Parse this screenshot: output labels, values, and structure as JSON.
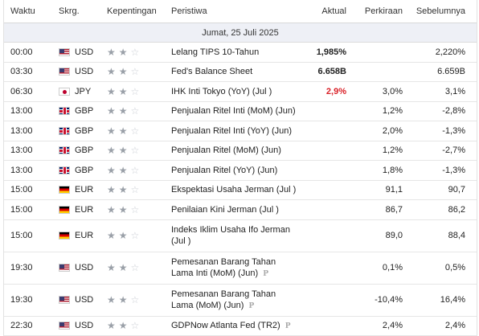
{
  "headers": {
    "time": "Waktu",
    "currency": "Skrg.",
    "importance": "Kepentingan",
    "event": "Peristiwa",
    "actual": "Aktual",
    "forecast": "Perkiraan",
    "previous": "Sebelumnya"
  },
  "day_label": "Jumat, 25 Juli 2025",
  "rows": [
    {
      "time": "00:00",
      "flag": "us",
      "cur": "USD",
      "event": "Lelang TIPS 10-Tahun",
      "event2": "",
      "actual": "1,985%",
      "forecast": "",
      "previous": "2,220%",
      "p": false
    },
    {
      "time": "03:30",
      "flag": "us",
      "cur": "USD",
      "event": "Fed's Balance Sheet",
      "event2": "",
      "actual": "6.658B",
      "forecast": "",
      "previous": "6.659B",
      "p": false
    },
    {
      "time": "06:30",
      "flag": "jp",
      "cur": "JPY",
      "event": "IHK Inti Tokyo (YoY) (Jul )",
      "event2": "",
      "actual": "2,9%",
      "forecast": "3,0%",
      "previous": "3,1%",
      "p": false
    },
    {
      "time": "13:00",
      "flag": "gb",
      "cur": "GBP",
      "event": "Penjualan Ritel Inti (MoM) (Jun)",
      "event2": "",
      "actual": "",
      "forecast": "1,2%",
      "previous": "-2,8%",
      "p": false
    },
    {
      "time": "13:00",
      "flag": "gb",
      "cur": "GBP",
      "event": "Penjualan Ritel Inti (YoY) (Jun)",
      "event2": "",
      "actual": "",
      "forecast": "2,0%",
      "previous": "-1,3%",
      "p": false
    },
    {
      "time": "13:00",
      "flag": "gb",
      "cur": "GBP",
      "event": "Penjualan Ritel (MoM) (Jun)",
      "event2": "",
      "actual": "",
      "forecast": "1,2%",
      "previous": "-2,7%",
      "p": false
    },
    {
      "time": "13:00",
      "flag": "gb",
      "cur": "GBP",
      "event": "Penjualan Ritel (YoY) (Jun)",
      "event2": "",
      "actual": "",
      "forecast": "1,8%",
      "previous": "-1,3%",
      "p": false
    },
    {
      "time": "15:00",
      "flag": "de",
      "cur": "EUR",
      "event": "Ekspektasi Usaha Jerman (Jul )",
      "event2": "",
      "actual": "",
      "forecast": "91,1",
      "previous": "90,7",
      "p": false
    },
    {
      "time": "15:00",
      "flag": "de",
      "cur": "EUR",
      "event": "Penilaian Kini Jerman (Jul )",
      "event2": "",
      "actual": "",
      "forecast": "86,7",
      "previous": "86,2",
      "p": false
    },
    {
      "time": "15:00",
      "flag": "de",
      "cur": "EUR",
      "event": "Indeks Iklim Usaha Ifo Jerman",
      "event2": "(Jul )",
      "actual": "",
      "forecast": "89,0",
      "previous": "88,4",
      "p": false
    },
    {
      "time": "19:30",
      "flag": "us",
      "cur": "USD",
      "event": "Pemesanan Barang Tahan",
      "event2": "Lama Inti (MoM) (Jun)",
      "actual": "",
      "forecast": "0,1%",
      "previous": "0,5%",
      "p": true
    },
    {
      "time": "19:30",
      "flag": "us",
      "cur": "USD",
      "event": "Pemesanan Barang Tahan",
      "event2": "Lama (MoM) (Jun)",
      "actual": "",
      "forecast": "-10,4%",
      "previous": "16,4%",
      "p": true
    },
    {
      "time": "22:30",
      "flag": "us",
      "cur": "USD",
      "event": "GDPNow Atlanta Fed (TR2)",
      "event2": "",
      "actual": "",
      "forecast": "2,4%",
      "previous": "2,4%",
      "p": true
    }
  ],
  "actual_colors": {
    "2": "#d91f26"
  },
  "importance_stars": {
    "filled": 2,
    "total": 3
  },
  "p_mark": "P"
}
